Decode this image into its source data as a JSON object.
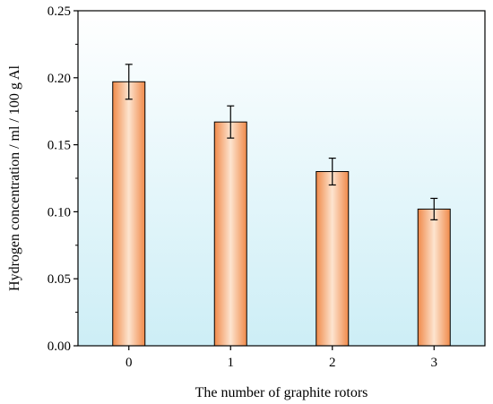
{
  "chart_data": {
    "type": "bar",
    "title": "",
    "xlabel": "The number of graphite rotors",
    "ylabel": "Hydrogen concentration / ml / 100 g Al",
    "categories": [
      "0",
      "1",
      "2",
      "3"
    ],
    "values": [
      0.197,
      0.167,
      0.13,
      0.102
    ],
    "errors": [
      0.013,
      0.012,
      0.01,
      0.008
    ],
    "ylim": [
      0,
      0.25
    ],
    "yticks": [
      0.0,
      0.05,
      0.1,
      0.15,
      0.2,
      0.25
    ],
    "ytick_labels": [
      "0.00",
      "0.05",
      "0.10",
      "0.15",
      "0.20",
      "0.25"
    ],
    "grid": false,
    "legend": "none",
    "colors": {
      "bar_light": "#fde4cf",
      "bar_mid": "#f7b07a",
      "bar_dark": "#f08a4a",
      "background_top": "#e9f8fb",
      "background_bottom": "#cdeef6",
      "axis": "#000000"
    }
  }
}
